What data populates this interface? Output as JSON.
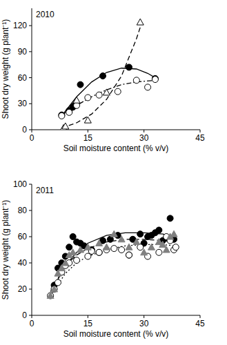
{
  "chart_data": [
    {
      "type": "scatter",
      "title": "2010",
      "x_label": "Soil moisture content (% v/v)",
      "y_label": "Shoot dry weight (g plant⁻¹)",
      "xlim": [
        0,
        45
      ],
      "xticks": [
        0,
        15,
        30,
        45
      ],
      "ylim": [
        0,
        140
      ],
      "yticks": [
        0,
        30,
        60,
        90,
        120
      ],
      "series": [
        {
          "type": "scatter",
          "marker": "circle",
          "color": "#000000",
          "x": [
            8,
            10,
            11,
            11.5,
            13,
            19,
            26,
            33
          ],
          "values": [
            17,
            22,
            26,
            28,
            52,
            62,
            72,
            59
          ]
        },
        {
          "type": "scatter",
          "marker": "open-circle",
          "color": "#000000",
          "x": [
            8,
            10,
            12,
            15,
            18,
            23,
            28,
            31,
            33
          ],
          "values": [
            16,
            20,
            28,
            37,
            40,
            44,
            57,
            49,
            58
          ]
        },
        {
          "type": "scatter",
          "marker": "open-triangle",
          "color": "#000000",
          "x": [
            8.5,
            9,
            12,
            15,
            20,
            29
          ],
          "values": [
            2,
            4,
            34,
            11,
            43,
            124
          ]
        },
        {
          "type": "line",
          "line_style": "solid",
          "color": "#000000",
          "x": [
            8,
            12,
            16,
            20,
            24,
            28,
            31,
            33
          ],
          "values": [
            16,
            38,
            55,
            66,
            71,
            70,
            65,
            60
          ]
        },
        {
          "type": "line",
          "line_style": "dashdot",
          "color": "#000000",
          "x": [
            8,
            12,
            16,
            20,
            24,
            28,
            33
          ],
          "values": [
            17,
            28,
            38,
            46,
            52,
            55,
            57
          ]
        },
        {
          "type": "line",
          "line_style": "dashed",
          "color": "#000000",
          "x": [
            8,
            12,
            16,
            20,
            24,
            28,
            29
          ],
          "values": [
            2,
            8,
            18,
            35,
            62,
            105,
            118
          ]
        }
      ]
    },
    {
      "type": "scatter",
      "title": "2011",
      "x_label": "Soil moisture content (% v/v)",
      "y_label": "Shoot dry weight (g plant⁻¹)",
      "xlim": [
        0,
        45
      ],
      "xticks": [
        0,
        15,
        30,
        45
      ],
      "ylim": [
        0,
        100
      ],
      "yticks": [
        0,
        20,
        40,
        60,
        80,
        100
      ],
      "series": [
        {
          "type": "scatter",
          "marker": "circle",
          "color": "#000000",
          "x": [
            6,
            7,
            8,
            9,
            10,
            11,
            12,
            13,
            14,
            16,
            18,
            19,
            21,
            23,
            26,
            27,
            29,
            30,
            31,
            32,
            33,
            34,
            35,
            36,
            37,
            38
          ],
          "values": [
            23,
            36,
            40,
            45,
            52,
            60,
            56,
            55,
            53,
            50,
            48,
            57,
            58,
            61,
            46,
            58,
            62,
            55,
            60,
            61,
            63,
            65,
            57,
            59,
            74,
            58
          ]
        },
        {
          "type": "scatter",
          "marker": "open-circle",
          "color": "#000000",
          "x": [
            5,
            6,
            7,
            8,
            9,
            10,
            12,
            15,
            16,
            18,
            20,
            22,
            24,
            26,
            29,
            31,
            34,
            36,
            37,
            38,
            38.5
          ],
          "values": [
            15,
            20,
            25,
            33,
            38,
            40,
            42,
            45,
            49,
            48,
            50,
            51,
            50,
            46,
            52,
            45,
            48,
            60,
            57,
            50,
            52
          ]
        },
        {
          "type": "scatter",
          "marker": "triangle",
          "color": "#808080",
          "x": [
            5,
            6,
            7,
            8,
            9,
            10,
            11,
            13,
            15,
            18,
            20,
            22,
            24,
            26,
            28,
            30,
            32,
            34,
            35,
            36,
            37,
            38
          ],
          "values": [
            15,
            20,
            32,
            36,
            40,
            46,
            48,
            50,
            52,
            55,
            52,
            62,
            58,
            52,
            56,
            48,
            52,
            56,
            54,
            50,
            60,
            62
          ]
        },
        {
          "type": "line",
          "line_style": "solid",
          "color": "#000000",
          "x": [
            6,
            9,
            12,
            15,
            20,
            25,
            30,
            35,
            38
          ],
          "values": [
            22,
            38,
            48,
            55,
            61,
            63,
            63,
            62,
            60
          ]
        },
        {
          "type": "line",
          "line_style": "dotted",
          "color": "#000000",
          "x": [
            5,
            9,
            12,
            15,
            20,
            25,
            30,
            35,
            38
          ],
          "values": [
            15,
            32,
            40,
            45,
            50,
            53,
            54,
            54,
            53
          ]
        },
        {
          "type": "line",
          "line_style": "dashed",
          "color": "#000000",
          "x": [
            5,
            9,
            12,
            15,
            20,
            25,
            30,
            35,
            38
          ],
          "values": [
            18,
            38,
            46,
            51,
            56,
            58,
            58,
            57,
            56
          ]
        }
      ]
    }
  ]
}
